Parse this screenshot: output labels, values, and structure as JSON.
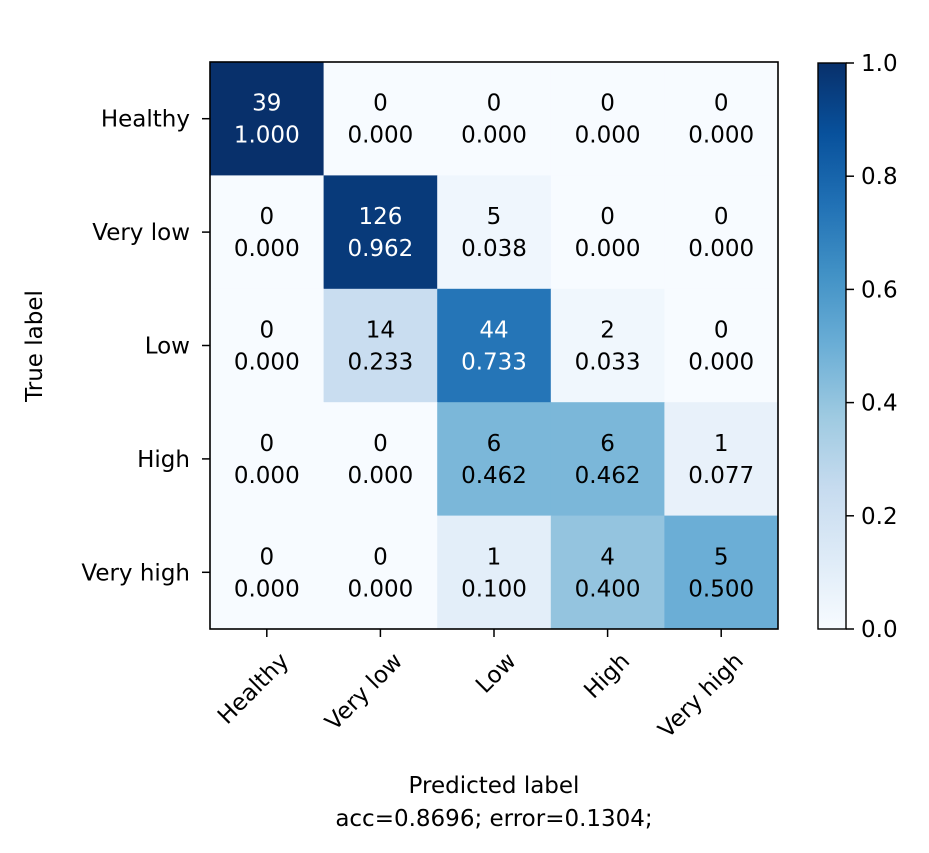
{
  "chart_data": {
    "type": "heatmap",
    "title": "",
    "xlabel": "Predicted label",
    "xlabel_sub": "acc=0.8696; error=0.1304;",
    "ylabel": "True label",
    "x_categories": [
      "Healthy",
      "Very low",
      "Low",
      "High",
      "Very high"
    ],
    "y_categories": [
      "Healthy",
      "Very low",
      "Low",
      "High",
      "Very high"
    ],
    "counts": [
      [
        39,
        0,
        0,
        0,
        0
      ],
      [
        0,
        126,
        5,
        0,
        0
      ],
      [
        0,
        14,
        44,
        2,
        0
      ],
      [
        0,
        0,
        6,
        6,
        1
      ],
      [
        0,
        0,
        1,
        4,
        5
      ]
    ],
    "values": [
      [
        1.0,
        0.0,
        0.0,
        0.0,
        0.0
      ],
      [
        0.0,
        0.962,
        0.038,
        0.0,
        0.0
      ],
      [
        0.0,
        0.233,
        0.733,
        0.033,
        0.0
      ],
      [
        0.0,
        0.0,
        0.462,
        0.462,
        0.077
      ],
      [
        0.0,
        0.0,
        0.1,
        0.4,
        0.5
      ]
    ],
    "colorscale": "Blues",
    "colorbar": {
      "range": [
        0.0,
        1.0
      ],
      "ticks": [
        "0.0",
        "0.2",
        "0.4",
        "0.6",
        "0.8",
        "1.0"
      ]
    }
  }
}
